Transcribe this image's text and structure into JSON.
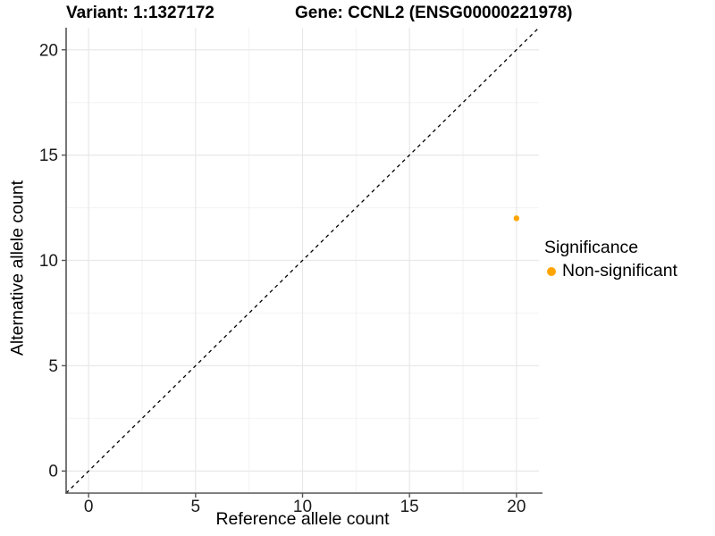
{
  "header": {
    "variant_title": "Variant: 1:1327172",
    "gene_title": "Gene: CCNL2 (ENSG00000221978)"
  },
  "chart_data": {
    "type": "scatter",
    "xlabel": "Reference allele count",
    "ylabel": "Alternative allele count",
    "xlim": [
      -1.05,
      21.05
    ],
    "ylim": [
      -1.05,
      21.05
    ],
    "x_ticks": [
      0,
      5,
      10,
      15,
      20
    ],
    "y_ticks": [
      0,
      5,
      10,
      15,
      20
    ],
    "x_minor_ticks": [
      2.5,
      7.5,
      12.5,
      17.5
    ],
    "y_minor_ticks": [
      2.5,
      7.5,
      12.5,
      17.5
    ],
    "grid": true,
    "reference_line": {
      "kind": "identity",
      "style": "dashed",
      "color": "#000000"
    },
    "series": [
      {
        "name": "Non-significant",
        "color": "#FFA500",
        "points": [
          [
            20,
            12
          ]
        ]
      }
    ],
    "legend": {
      "title": "Significance",
      "position": "right",
      "items": [
        {
          "label": "Non-significant",
          "color": "#FFA500"
        }
      ]
    }
  },
  "style_colors": {
    "background": "#FFFFFF",
    "axis_line": "#555555",
    "tick_label": "#1A1A1A",
    "grid_major": "#E8E8E8",
    "grid_minor": "#F2F2F2",
    "point": "#FFA500"
  }
}
